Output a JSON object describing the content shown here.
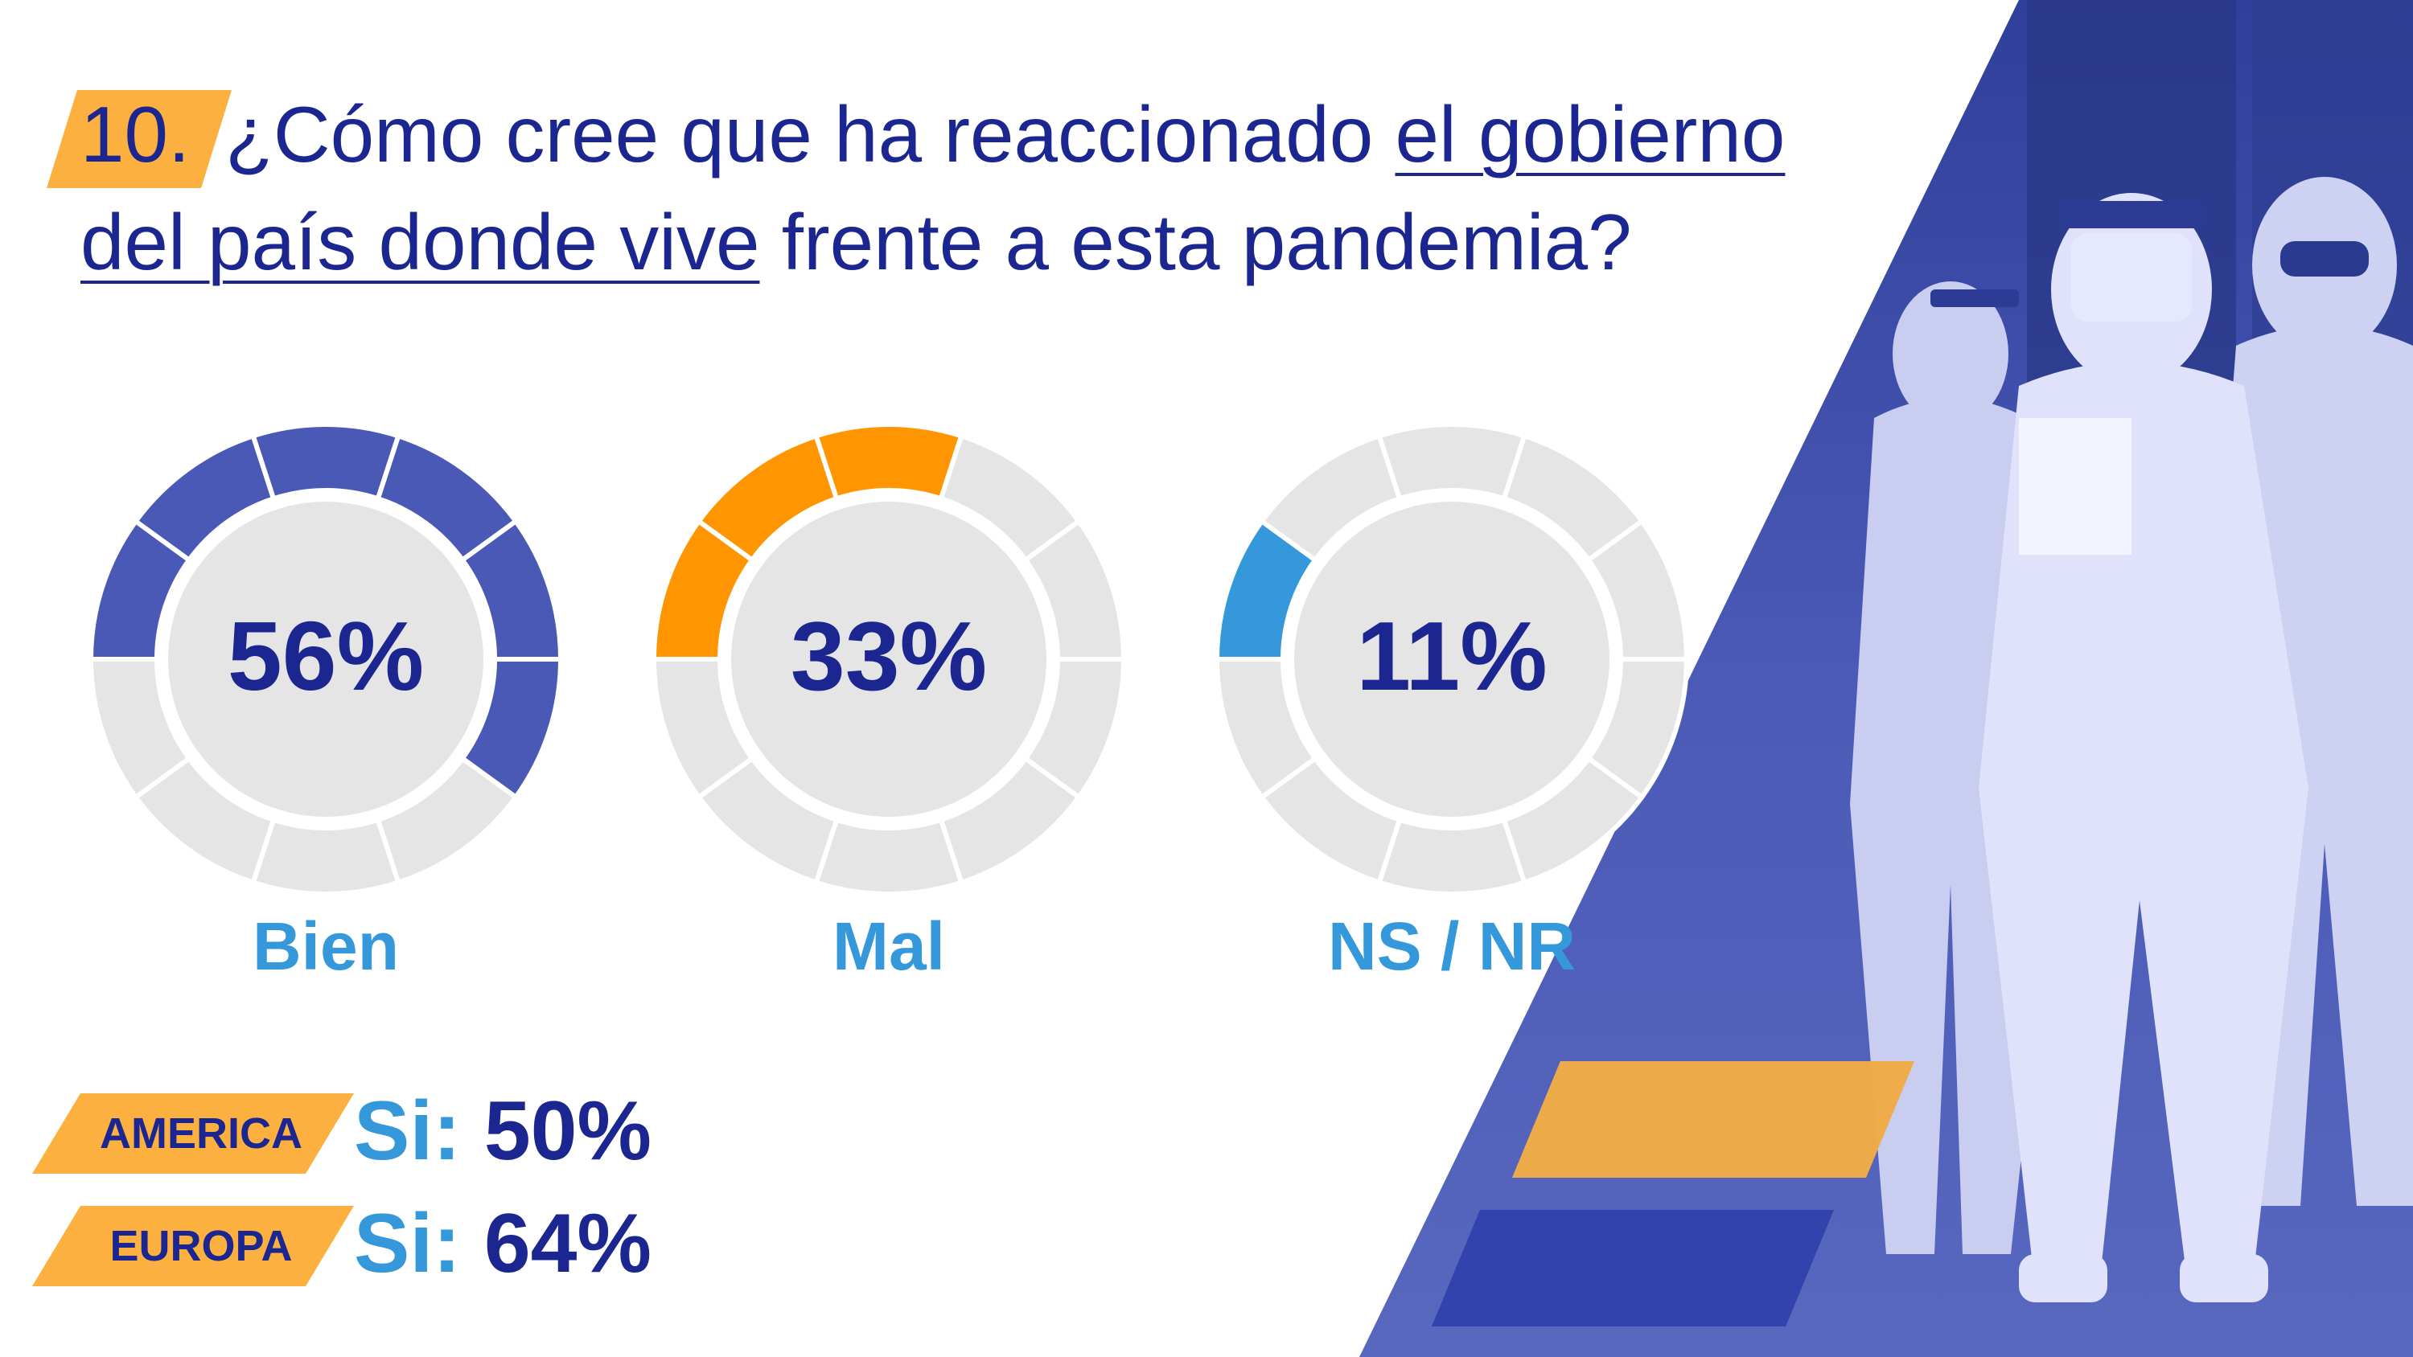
{
  "question": {
    "number": "10.",
    "line1_prefix": "¿Cómo cree que ha reaccionado ",
    "line1_underlined": "el gobierno",
    "line2_underlined": "del país donde vive",
    "line2_suffix": " frente a esta pandemia?"
  },
  "colors": {
    "navy": "#1c2690",
    "blue_fill": "#4a59b5",
    "orange_fill": "#ff9500",
    "light_blue": "#3498db",
    "track": "#e5e5e5",
    "tag_orange": "#fbb040"
  },
  "chart_data": {
    "type": "pie",
    "style": "segmented donut (10 segments per ring)",
    "categories": [
      "Bien",
      "Mal",
      "NS / NR"
    ],
    "values": [
      56,
      33,
      11
    ],
    "value_labels": [
      "56%",
      "33%",
      "11%"
    ],
    "segment_colors": [
      "#4a59b5",
      "#ff9500",
      "#3498db"
    ]
  },
  "regions": [
    {
      "name": "AMERICA",
      "key": "Si:",
      "value": "50%"
    },
    {
      "name": "EUROPA",
      "key": "Si:",
      "value": "64%"
    }
  ]
}
